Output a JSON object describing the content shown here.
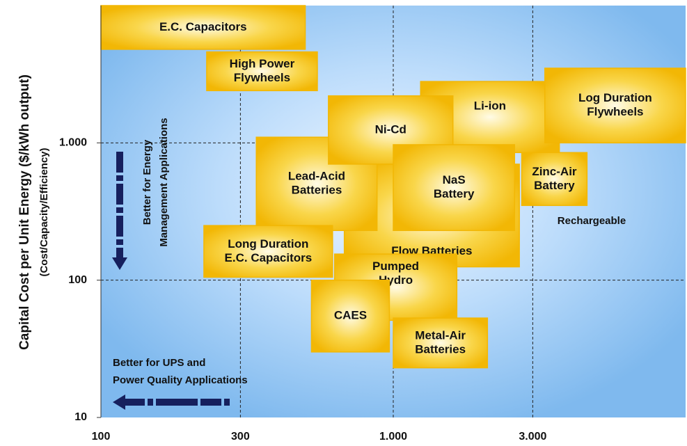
{
  "chart_data": {
    "type": "range-box",
    "y_label": "Capital Cost per Unit Energy ($/kWh output)",
    "y_sublabel": "(Cost/Capacity/Efficiency)",
    "x_log": true,
    "y_log": true,
    "grid": true,
    "xlim": [
      100,
      10000
    ],
    "ylim": [
      10,
      10000
    ],
    "xticks": [
      100,
      300,
      {
        "value": 1000,
        "label": "1.000"
      },
      {
        "value": 3000,
        "label": "3.000"
      }
    ],
    "yticks": [
      10,
      100,
      {
        "value": 1000,
        "label": "1.000"
      }
    ],
    "color": "#f2b705",
    "boxes": [
      {
        "name": [
          "E.C. Capacitors"
        ],
        "x": [
          100,
          500
        ],
        "y": [
          4800,
          10000
        ]
      },
      {
        "name": [
          "High Power",
          "Flywheels"
        ],
        "x": [
          230,
          550
        ],
        "y": [
          2400,
          4600
        ]
      },
      {
        "name": [
          "Li-ion"
        ],
        "x": [
          1240,
          3700
        ],
        "y": [
          850,
          2800
        ]
      },
      {
        "name": [
          "Log Duration",
          "Flywheels"
        ],
        "x": [
          3300,
          10000
        ],
        "y": [
          1000,
          3500
        ]
      },
      {
        "name": [
          "Flow Batteries"
        ],
        "x": [
          680,
          2700
        ],
        "y": [
          125,
          700
        ]
      },
      {
        "name": [
          "Lead-Acid",
          "Batteries"
        ],
        "x": [
          340,
          880
        ],
        "y": [
          230,
          1100
        ]
      },
      {
        "name": [
          "Ni-Cd"
        ],
        "x": [
          600,
          1600
        ],
        "y": [
          700,
          2200
        ]
      },
      {
        "name": [
          "NaS",
          "Battery"
        ],
        "x": [
          1000,
          2600
        ],
        "y": [
          230,
          970
        ]
      },
      {
        "name": [
          "Zinc-Air",
          "Battery"
        ],
        "x": [
          2750,
          4600
        ],
        "y": [
          350,
          850
        ]
      },
      {
        "name": [
          "Long Duration",
          "E.C. Capacitors"
        ],
        "x": [
          225,
          620
        ],
        "y": [
          105,
          250
        ]
      },
      {
        "name": [
          "Pumped",
          "Hydro"
        ],
        "x": [
          630,
          1650
        ],
        "y": [
          51,
          155
        ]
      },
      {
        "name": [
          "CAES"
        ],
        "x": [
          525,
          970
        ],
        "y": [
          30,
          100
        ]
      },
      {
        "name": [
          "Metal-Air",
          "Batteries"
        ],
        "x": [
          1000,
          2100
        ],
        "y": [
          23,
          53
        ]
      }
    ],
    "annotations": [
      "Rechargeable",
      "Better for Energy",
      "Management Applications",
      "Better for UPS and",
      "Power Quality Applications"
    ]
  }
}
